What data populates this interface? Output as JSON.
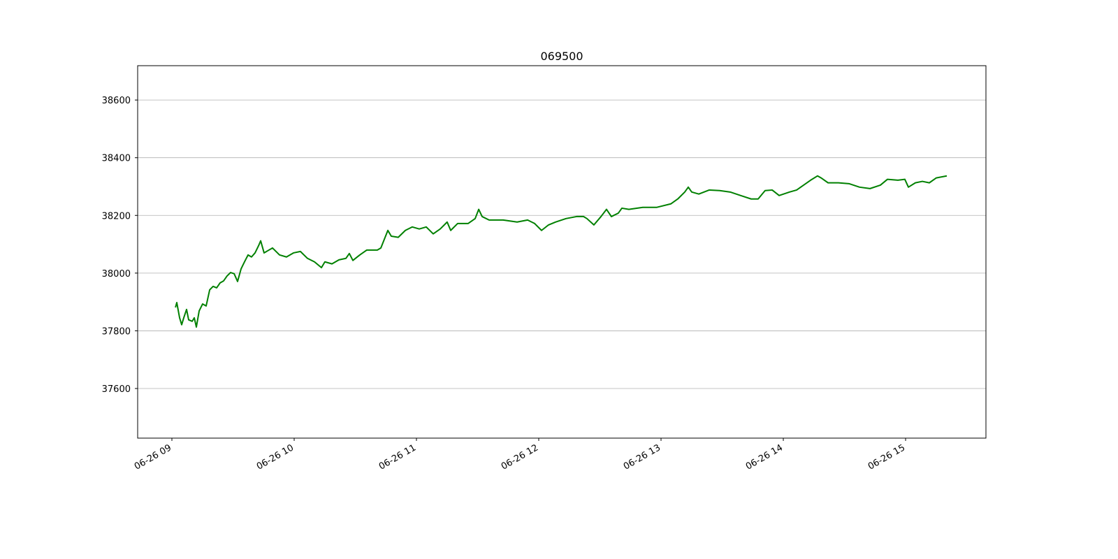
{
  "chart_data": {
    "type": "line",
    "title": "069500",
    "x": [
      9.029,
      9.04,
      9.063,
      9.08,
      9.097,
      9.12,
      9.137,
      9.166,
      9.183,
      9.2,
      9.223,
      9.251,
      9.28,
      9.309,
      9.337,
      9.366,
      9.394,
      9.423,
      9.451,
      9.48,
      9.509,
      9.537,
      9.566,
      9.594,
      9.623,
      9.651,
      9.68,
      9.709,
      9.726,
      9.754,
      9.794,
      9.823,
      9.88,
      9.937,
      9.994,
      10.051,
      10.109,
      10.166,
      10.223,
      10.251,
      10.309,
      10.366,
      10.423,
      10.451,
      10.48,
      10.537,
      10.594,
      10.68,
      10.709,
      10.766,
      10.794,
      10.851,
      10.909,
      10.966,
      11.023,
      11.08,
      11.137,
      11.194,
      11.251,
      11.28,
      11.337,
      11.423,
      11.48,
      11.509,
      11.537,
      11.594,
      11.709,
      11.823,
      11.909,
      11.966,
      12.023,
      12.08,
      12.137,
      12.223,
      12.309,
      12.366,
      12.394,
      12.451,
      12.509,
      12.554,
      12.594,
      12.651,
      12.68,
      12.737,
      12.851,
      12.966,
      13.08,
      13.137,
      13.194,
      13.223,
      13.251,
      13.309,
      13.394,
      13.48,
      13.566,
      13.651,
      13.737,
      13.794,
      13.851,
      13.909,
      13.966,
      14.051,
      14.109,
      14.166,
      14.223,
      14.28,
      14.309,
      14.366,
      14.451,
      14.537,
      14.623,
      14.709,
      14.794,
      14.851,
      14.937,
      14.994,
      15.023,
      15.08,
      15.137,
      15.194,
      15.251,
      15.337
    ],
    "series": [
      {
        "name": "069500",
        "color": "#008000",
        "values": [
          37881,
          37898,
          37845,
          37821,
          37845,
          37874,
          37838,
          37833,
          37845,
          37813,
          37869,
          37893,
          37886,
          37942,
          37954,
          37949,
          37966,
          37973,
          37990,
          38002,
          37998,
          37971,
          38015,
          38039,
          38063,
          38056,
          38070,
          38095,
          38112,
          38070,
          38080,
          38087,
          38063,
          38056,
          38070,
          38075,
          38051,
          38039,
          38019,
          38039,
          38032,
          38046,
          38051,
          38068,
          38044,
          38063,
          38080,
          38080,
          38087,
          38148,
          38128,
          38124,
          38148,
          38160,
          38153,
          38160,
          38136,
          38153,
          38177,
          38148,
          38172,
          38172,
          38189,
          38221,
          38196,
          38184,
          38184,
          38177,
          38184,
          38172,
          38148,
          38167,
          38177,
          38189,
          38196,
          38196,
          38189,
          38167,
          38196,
          38221,
          38196,
          38208,
          38225,
          38221,
          38228,
          38228,
          38240,
          38257,
          38281,
          38298,
          38281,
          38274,
          38288,
          38286,
          38281,
          38269,
          38257,
          38257,
          38286,
          38288,
          38269,
          38281,
          38288,
          38305,
          38322,
          38337,
          38330,
          38313,
          38313,
          38310,
          38298,
          38293,
          38305,
          38325,
          38322,
          38325,
          38298,
          38313,
          38318,
          38313,
          38330,
          38337
        ]
      }
    ],
    "xlim": [
      8.72,
      15.657
    ],
    "xticks": [
      {
        "value": 9,
        "label": "06-26 09"
      },
      {
        "value": 10,
        "label": "06-26 10"
      },
      {
        "value": 11,
        "label": "06-26 11"
      },
      {
        "value": 12,
        "label": "06-26 12"
      },
      {
        "value": 13,
        "label": "06-26 13"
      },
      {
        "value": 14,
        "label": "06-26 14"
      },
      {
        "value": 15,
        "label": "06-26 15"
      }
    ],
    "ylim": [
      37428,
      38719
    ],
    "yticks": [
      37600,
      37800,
      38000,
      38200,
      38400,
      38600
    ],
    "grid": "y"
  }
}
